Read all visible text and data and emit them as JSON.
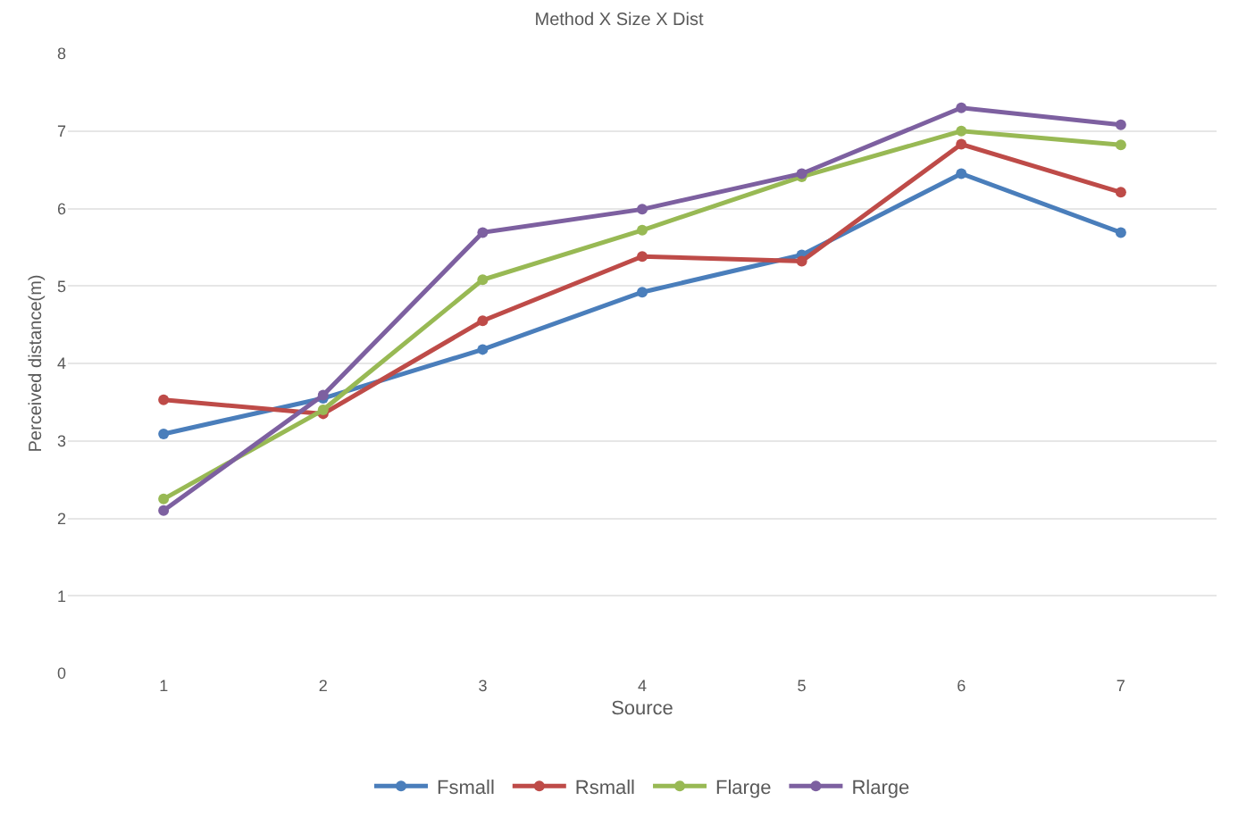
{
  "chart_data": {
    "type": "line",
    "title": "Method X Size X Dist",
    "xlabel": "Source",
    "ylabel": "Perceived distance(m)",
    "categories": [
      "1",
      "2",
      "3",
      "4",
      "5",
      "6",
      "7"
    ],
    "series": [
      {
        "name": "Fsmall",
        "color": "#4a7ebb",
        "values": [
          3.09,
          3.55,
          4.18,
          4.92,
          5.4,
          6.45,
          5.69
        ]
      },
      {
        "name": "Rsmall",
        "color": "#be4b48",
        "values": [
          3.53,
          3.35,
          4.55,
          5.38,
          5.32,
          6.83,
          6.21
        ]
      },
      {
        "name": "Flarge",
        "color": "#98b954",
        "values": [
          2.25,
          3.4,
          5.08,
          5.72,
          6.41,
          7.0,
          6.82
        ]
      },
      {
        "name": "Rlarge",
        "color": "#7d60a0",
        "values": [
          2.1,
          3.59,
          5.69,
          5.99,
          6.45,
          7.3,
          7.08
        ]
      }
    ],
    "ylim": [
      0,
      8
    ],
    "yticks": [
      0,
      1,
      2,
      3,
      4,
      5,
      6,
      7,
      8
    ],
    "grid": "y",
    "legend": "bottom",
    "marker": "circle",
    "line_style": "solid"
  }
}
